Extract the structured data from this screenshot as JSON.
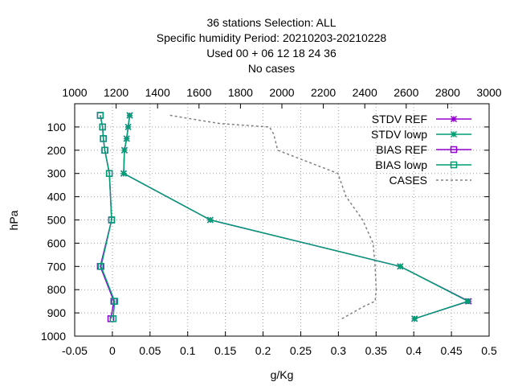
{
  "chart_data": {
    "type": "line",
    "title_lines": [
      "36 stations Selection: ALL",
      "Specific humidity  Period: 20210203-20210228",
      "Used  00  + 06 12 18 24 36",
      "No cases"
    ],
    "xlabel": "g/Kg",
    "ylabel": "hPa",
    "xlim": [
      -0.05,
      0.5
    ],
    "x_ticks": [
      "-0.05",
      "0",
      "0.05",
      "0.1",
      "0.15",
      "0.2",
      "0.25",
      "0.3",
      "0.35",
      "0.4",
      "0.45",
      "0.5"
    ],
    "x2lim": [
      1000,
      3000
    ],
    "x2_ticks": [
      "1000",
      "1200",
      "1400",
      "1600",
      "1800",
      "2000",
      "2200",
      "2400",
      "2600",
      "2800",
      "3000"
    ],
    "ylim": [
      1000,
      0
    ],
    "y_ticks": [
      "100",
      "200",
      "300",
      "400",
      "500",
      "600",
      "700",
      "800",
      "900",
      "1000"
    ],
    "grid": true,
    "legend_position": "top-right",
    "series": [
      {
        "name": "STDV REF",
        "color": "#9400d3",
        "marker": "x",
        "axis": "x1",
        "points": [
          [
            0.023,
            50
          ],
          [
            0.021,
            100
          ],
          [
            0.019,
            150
          ],
          [
            0.016,
            200
          ],
          [
            0.015,
            300
          ],
          [
            0.13,
            500
          ],
          [
            0.382,
            700
          ],
          [
            0.473,
            850
          ],
          [
            0.401,
            925
          ]
        ]
      },
      {
        "name": "STDV lowp",
        "color": "#009e73",
        "marker": "x",
        "axis": "x1",
        "points": [
          [
            0.023,
            50
          ],
          [
            0.021,
            100
          ],
          [
            0.019,
            150
          ],
          [
            0.016,
            200
          ],
          [
            0.015,
            300
          ],
          [
            0.13,
            500
          ],
          [
            0.382,
            700
          ],
          [
            0.472,
            850
          ],
          [
            0.401,
            925
          ]
        ]
      },
      {
        "name": "BIAS REF",
        "color": "#9400d3",
        "marker": "square",
        "axis": "x1",
        "points": [
          [
            -0.016,
            50
          ],
          [
            -0.013,
            100
          ],
          [
            -0.012,
            150
          ],
          [
            -0.01,
            200
          ],
          [
            -0.004,
            300
          ],
          [
            -0.001,
            500
          ],
          [
            -0.016,
            700
          ],
          [
            0.002,
            850
          ],
          [
            -0.002,
            925
          ]
        ]
      },
      {
        "name": "BIAS lowp",
        "color": "#009e73",
        "marker": "square",
        "axis": "x1",
        "points": [
          [
            -0.016,
            50
          ],
          [
            -0.013,
            100
          ],
          [
            -0.012,
            150
          ],
          [
            -0.01,
            200
          ],
          [
            -0.004,
            300
          ],
          [
            -0.001,
            500
          ],
          [
            -0.015,
            700
          ],
          [
            0.003,
            850
          ],
          [
            0.001,
            925
          ]
        ]
      },
      {
        "name": "CASES",
        "color": "#808080",
        "marker": "none",
        "dashed": true,
        "axis": "x2",
        "points": [
          [
            1460,
            50
          ],
          [
            1560,
            65
          ],
          [
            1700,
            85
          ],
          [
            1940,
            100
          ],
          [
            1960,
            130
          ],
          [
            1980,
            200
          ],
          [
            2270,
            300
          ],
          [
            2310,
            400
          ],
          [
            2390,
            500
          ],
          [
            2440,
            600
          ],
          [
            2450,
            700
          ],
          [
            2455,
            800
          ],
          [
            2450,
            850
          ],
          [
            2400,
            870
          ],
          [
            2290,
            925
          ]
        ]
      }
    ]
  }
}
